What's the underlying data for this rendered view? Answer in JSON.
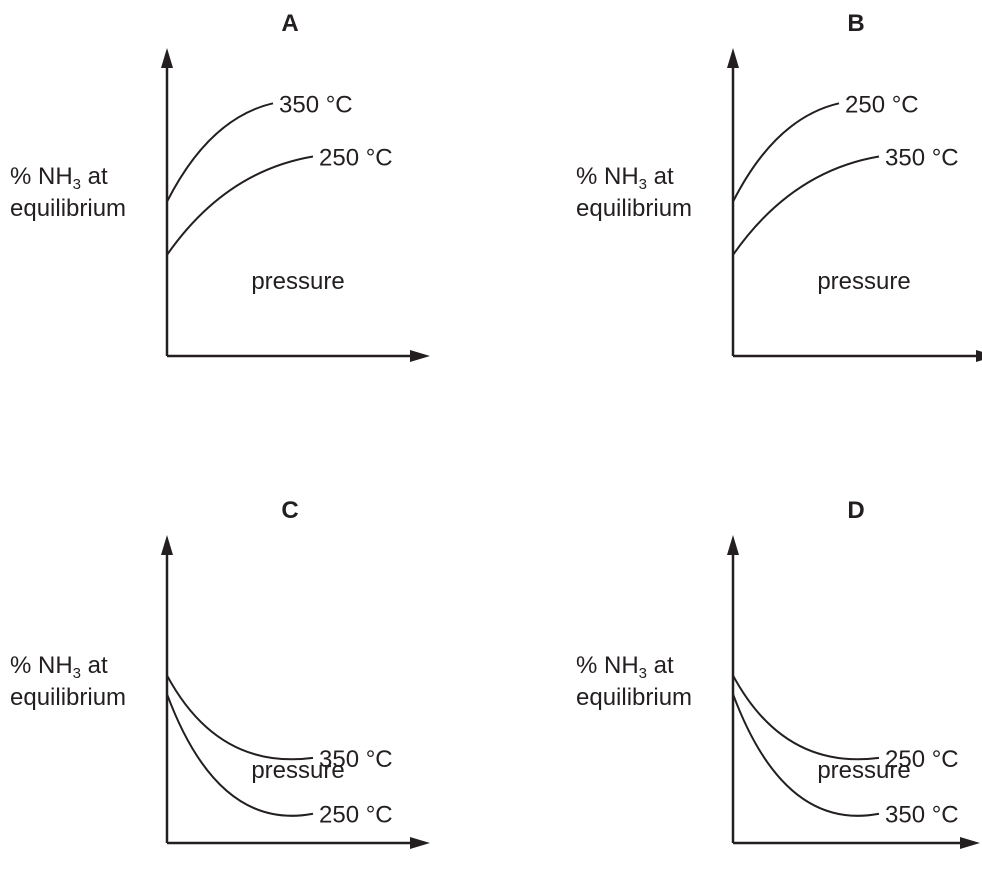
{
  "chart_data": [
    {
      "type": "line",
      "title": "A",
      "xlabel": "pressure",
      "ylabel_parts": [
        "% NH",
        "3",
        " at",
        "equilibrium"
      ],
      "series": [
        {
          "name": "350 °C",
          "trend": "increasing",
          "start": 0.58,
          "end": 0.95
        },
        {
          "name": "250 °C",
          "trend": "increasing",
          "start": 0.38,
          "end": 0.75
        }
      ]
    },
    {
      "type": "line",
      "title": "B",
      "xlabel": "pressure",
      "ylabel_parts": [
        "% NH",
        "3",
        " at",
        "equilibrium"
      ],
      "series": [
        {
          "name": "250 °C",
          "trend": "increasing",
          "start": 0.58,
          "end": 0.95
        },
        {
          "name": "350 °C",
          "trend": "increasing",
          "start": 0.38,
          "end": 0.75
        }
      ]
    },
    {
      "type": "line",
      "title": "C",
      "xlabel": "pressure",
      "ylabel_parts": [
        "% NH",
        "3",
        " at",
        "equilibrium"
      ],
      "series": [
        {
          "name": "350 °C",
          "trend": "decreasing",
          "start": 0.63,
          "end": 0.32
        },
        {
          "name": "250 °C",
          "trend": "decreasing",
          "start": 0.56,
          "end": 0.11
        }
      ]
    },
    {
      "type": "line",
      "title": "D",
      "xlabel": "pressure",
      "ylabel_parts": [
        "% NH",
        "3",
        " at",
        "equilibrium"
      ],
      "series": [
        {
          "name": "250 °C",
          "trend": "decreasing",
          "start": 0.63,
          "end": 0.32
        },
        {
          "name": "350 °C",
          "trend": "decreasing",
          "start": 0.56,
          "end": 0.11
        }
      ]
    }
  ]
}
